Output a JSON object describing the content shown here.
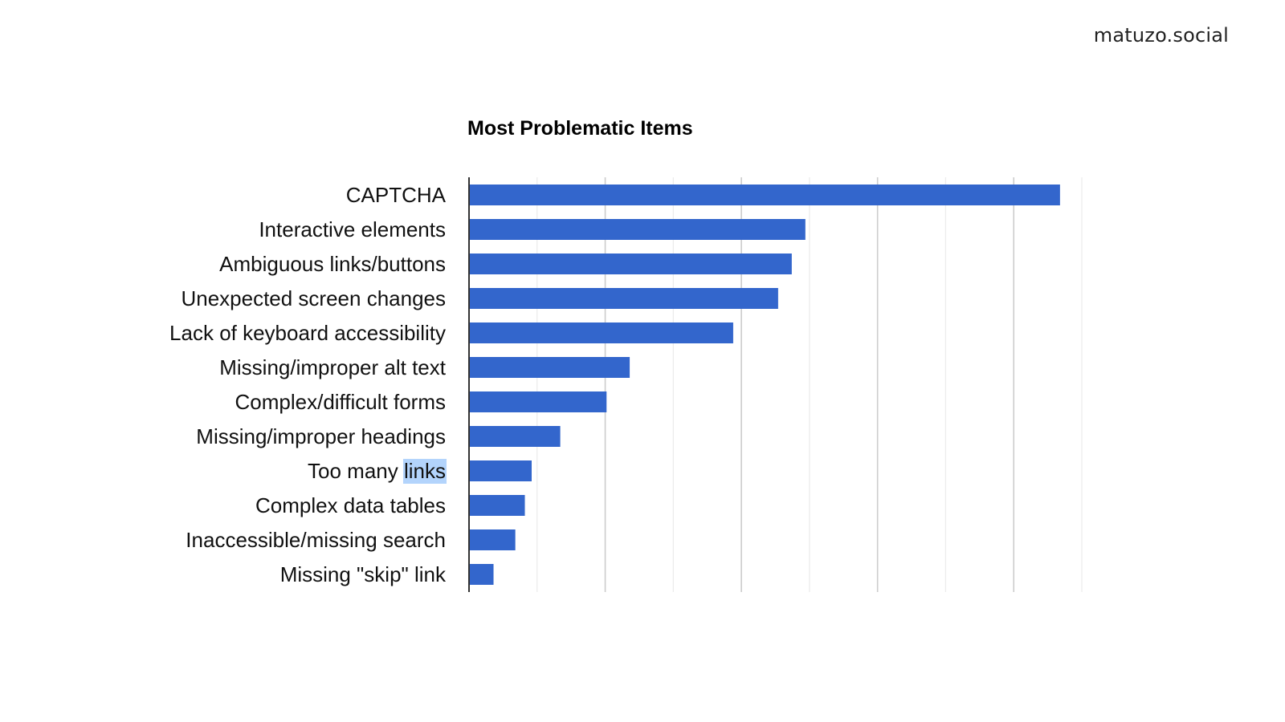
{
  "watermark": "matuzo.social",
  "chart_data": {
    "type": "bar",
    "orientation": "horizontal",
    "title": "Most Problematic Items",
    "xlabel": "",
    "ylabel": "",
    "categories": [
      "CAPTCHA",
      "Interactive elements",
      "Ambiguous links/buttons",
      "Unexpected screen changes",
      "Lack of keyboard accessibility",
      "Missing/improper alt text",
      "Complex/difficult forms",
      "Missing/improper headings",
      "Too many links",
      "Complex data tables",
      "Inaccessible/missing search",
      "Missing \"skip\" link"
    ],
    "values": [
      434,
      247,
      237,
      227,
      194,
      118,
      101,
      67,
      46,
      41,
      34,
      18
    ],
    "xlim": [
      0,
      450
    ],
    "x_tick_step": 50,
    "x_tick_labels_shown": false,
    "grid": true,
    "bar_color": "#3366cc",
    "highlighted_text": {
      "category_index": 8,
      "word": "links",
      "color": "#b3d4fc"
    }
  }
}
